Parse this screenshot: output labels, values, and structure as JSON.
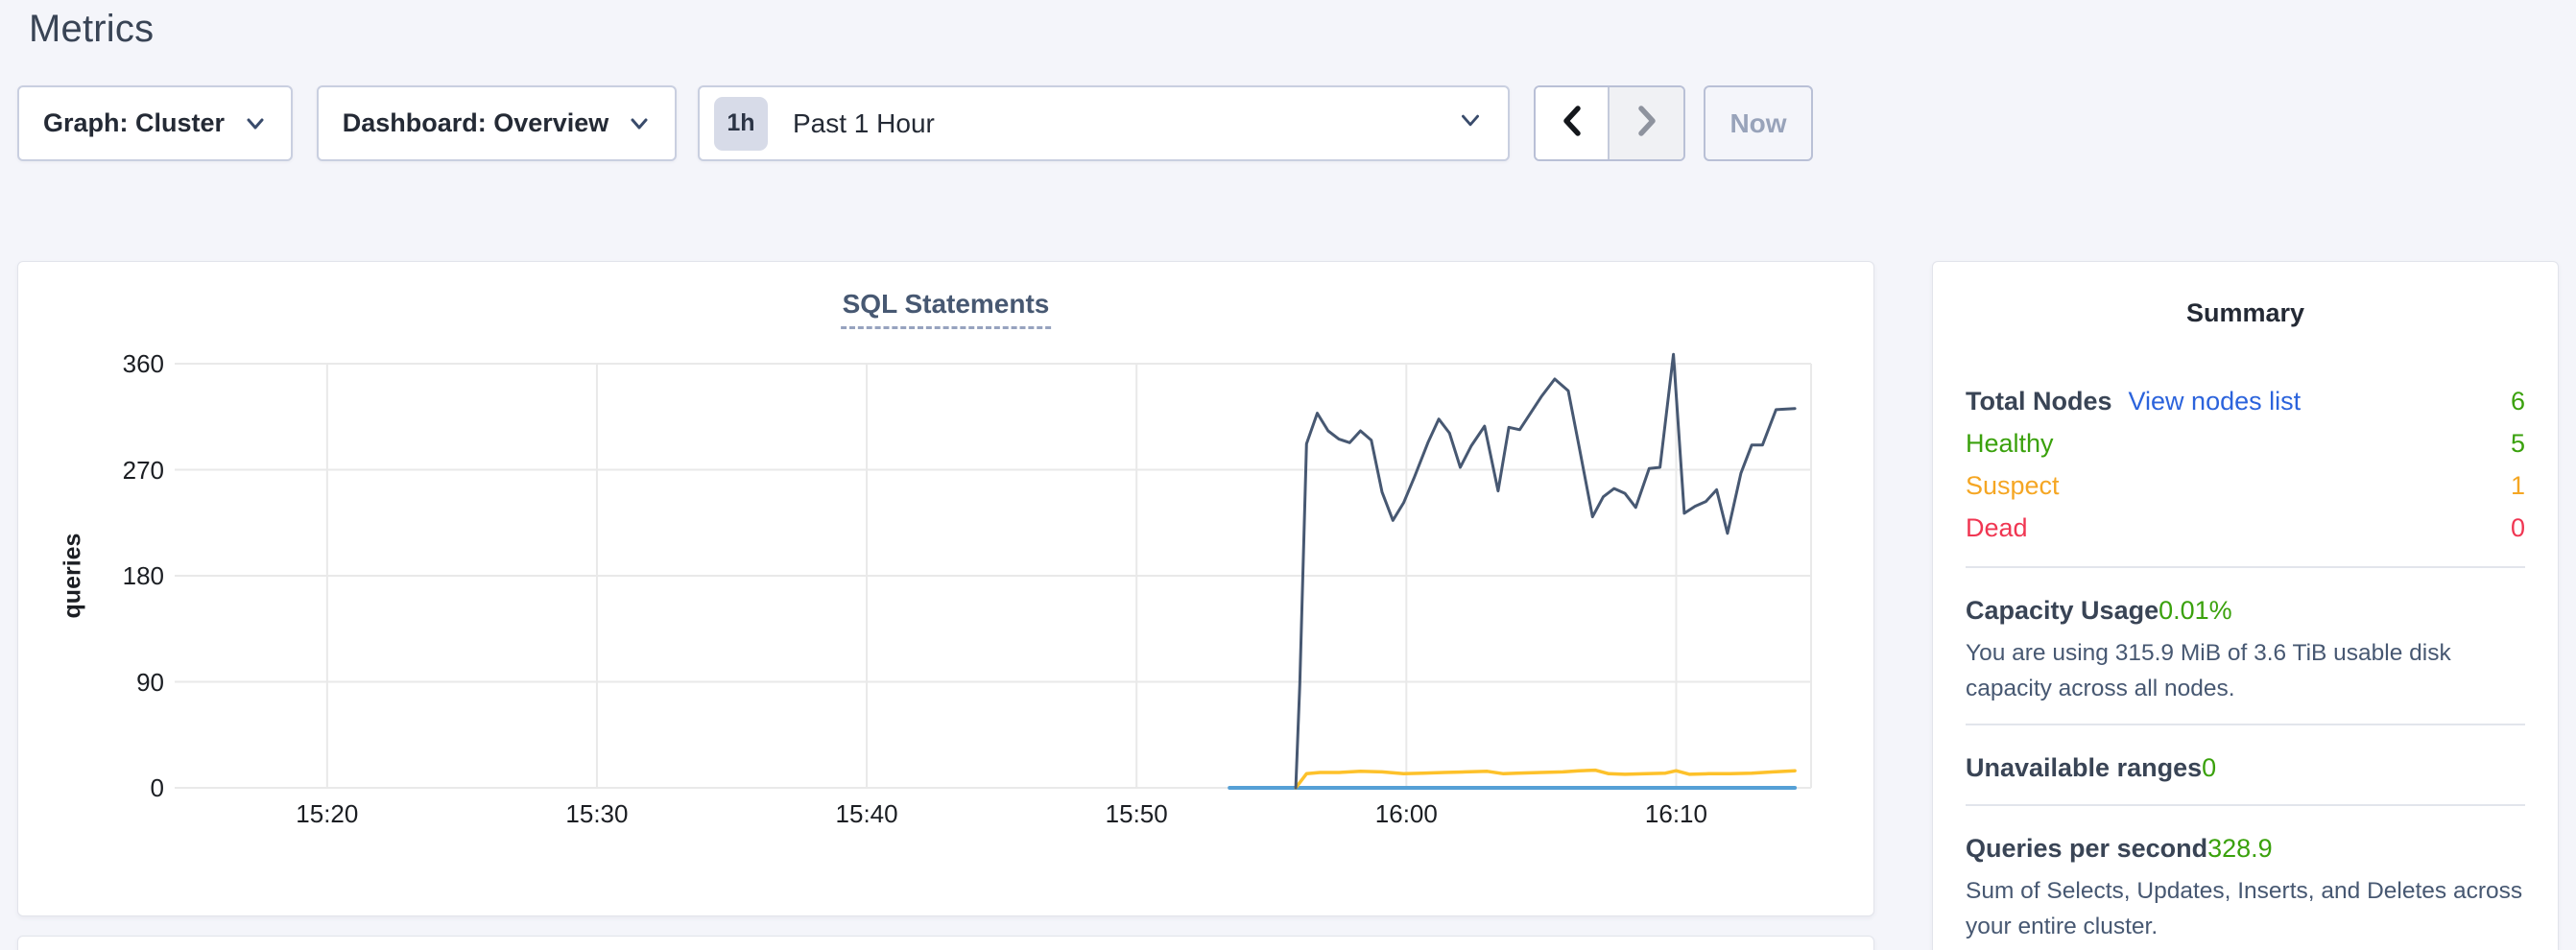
{
  "page": {
    "title": "Metrics"
  },
  "toolbar": {
    "graph_dropdown": "Graph: Cluster",
    "dashboard_dropdown": "Dashboard: Overview",
    "time_badge": "1h",
    "time_label": "Past 1 Hour",
    "now_button": "Now"
  },
  "chart_data": {
    "type": "line",
    "title": "SQL Statements",
    "ylabel": "queries",
    "xlabel": "",
    "grid": true,
    "legend_position": "none",
    "x_unit": "minutes after 15:00",
    "x_range": [
      14.35,
      75.0
    ],
    "ylim": [
      0,
      360
    ],
    "x_ticks": [
      {
        "t": 20,
        "label": "15:20"
      },
      {
        "t": 30,
        "label": "15:30"
      },
      {
        "t": 40,
        "label": "15:40"
      },
      {
        "t": 50,
        "label": "15:50"
      },
      {
        "t": 60,
        "label": "16:00"
      },
      {
        "t": 70,
        "label": "16:10"
      }
    ],
    "y_ticks": [
      0,
      90,
      180,
      270,
      360
    ],
    "series": [
      {
        "name": "blue-line",
        "color": "#55a0d6",
        "width": 4,
        "points": [
          [
            53.45,
            0
          ],
          [
            74.4,
            0
          ]
        ]
      },
      {
        "name": "yellow-line",
        "color": "#fdc12a",
        "width": 3.5,
        "points": [
          [
            55.9,
            0
          ],
          [
            56.3,
            12
          ],
          [
            56.8,
            13
          ],
          [
            57.5,
            13
          ],
          [
            58.3,
            14
          ],
          [
            59.1,
            13.5
          ],
          [
            59.9,
            12
          ],
          [
            60.6,
            12.5
          ],
          [
            61.4,
            13
          ],
          [
            62.2,
            13.5
          ],
          [
            63.0,
            14
          ],
          [
            63.6,
            12
          ],
          [
            64.1,
            12.5
          ],
          [
            65.0,
            13
          ],
          [
            65.8,
            13.5
          ],
          [
            66.4,
            14.5
          ],
          [
            67.0,
            15
          ],
          [
            67.5,
            12
          ],
          [
            68.1,
            11.5
          ],
          [
            68.9,
            12
          ],
          [
            69.6,
            12.5
          ],
          [
            70.0,
            14.5
          ],
          [
            70.5,
            11.5
          ],
          [
            71.2,
            12
          ],
          [
            72.0,
            12
          ],
          [
            72.8,
            12.5
          ],
          [
            73.6,
            13.5
          ],
          [
            74.4,
            14.5
          ]
        ]
      },
      {
        "name": "navy-line",
        "color": "#475872",
        "width": 3,
        "points": [
          [
            55.9,
            0
          ],
          [
            56.05,
            88
          ],
          [
            56.3,
            292
          ],
          [
            56.7,
            318
          ],
          [
            57.1,
            303
          ],
          [
            57.5,
            296
          ],
          [
            57.9,
            293
          ],
          [
            58.3,
            303
          ],
          [
            58.7,
            295
          ],
          [
            59.1,
            251
          ],
          [
            59.5,
            227
          ],
          [
            59.9,
            242
          ],
          [
            60.3,
            264
          ],
          [
            60.8,
            293
          ],
          [
            61.2,
            313
          ],
          [
            61.6,
            301
          ],
          [
            62.0,
            272
          ],
          [
            62.4,
            290
          ],
          [
            62.9,
            307
          ],
          [
            63.4,
            252
          ],
          [
            63.8,
            306
          ],
          [
            64.2,
            304
          ],
          [
            65.0,
            332
          ],
          [
            65.5,
            347
          ],
          [
            66.0,
            337
          ],
          [
            66.4,
            290
          ],
          [
            66.9,
            230
          ],
          [
            67.3,
            247
          ],
          [
            67.7,
            254
          ],
          [
            68.1,
            250
          ],
          [
            68.5,
            238
          ],
          [
            69.0,
            271
          ],
          [
            69.4,
            272
          ],
          [
            69.9,
            368
          ],
          [
            70.3,
            233
          ],
          [
            70.7,
            239
          ],
          [
            71.1,
            243
          ],
          [
            71.5,
            253
          ],
          [
            71.9,
            216
          ],
          [
            72.4,
            267
          ],
          [
            72.8,
            291
          ],
          [
            73.2,
            291
          ],
          [
            73.7,
            321
          ],
          [
            74.4,
            322
          ]
        ]
      }
    ],
    "gridline_color": "#e9e9e9"
  },
  "summary": {
    "title": "Summary",
    "total_nodes": {
      "label": "Total Nodes",
      "link": "View nodes list",
      "value": "6"
    },
    "healthy": {
      "label": "Healthy",
      "value": "5"
    },
    "suspect": {
      "label": "Suspect",
      "value": "1"
    },
    "dead": {
      "label": "Dead",
      "value": "0"
    },
    "capacity": {
      "label": "Capacity Usage",
      "value": "0.01%",
      "description": "You are using 315.9 MiB of 3.6 TiB usable disk capacity across all nodes."
    },
    "unavailable_ranges": {
      "label": "Unavailable ranges",
      "value": "0"
    },
    "queries_per_second": {
      "label": "Queries per second",
      "value": "328.9",
      "description": "Sum of Selects, Updates, Inserts, and Deletes across your entire cluster."
    }
  },
  "colors": {
    "page_background": "#f4f5fa",
    "heading": "#394455",
    "chart_title": "#475872",
    "link_blue": "#2b63dc",
    "status_green": "#3aa10c",
    "status_orange": "#f5a623",
    "status_red": "#f03652",
    "badge_background": "#d7dbe8",
    "disabled_text": "#98a3ba"
  }
}
